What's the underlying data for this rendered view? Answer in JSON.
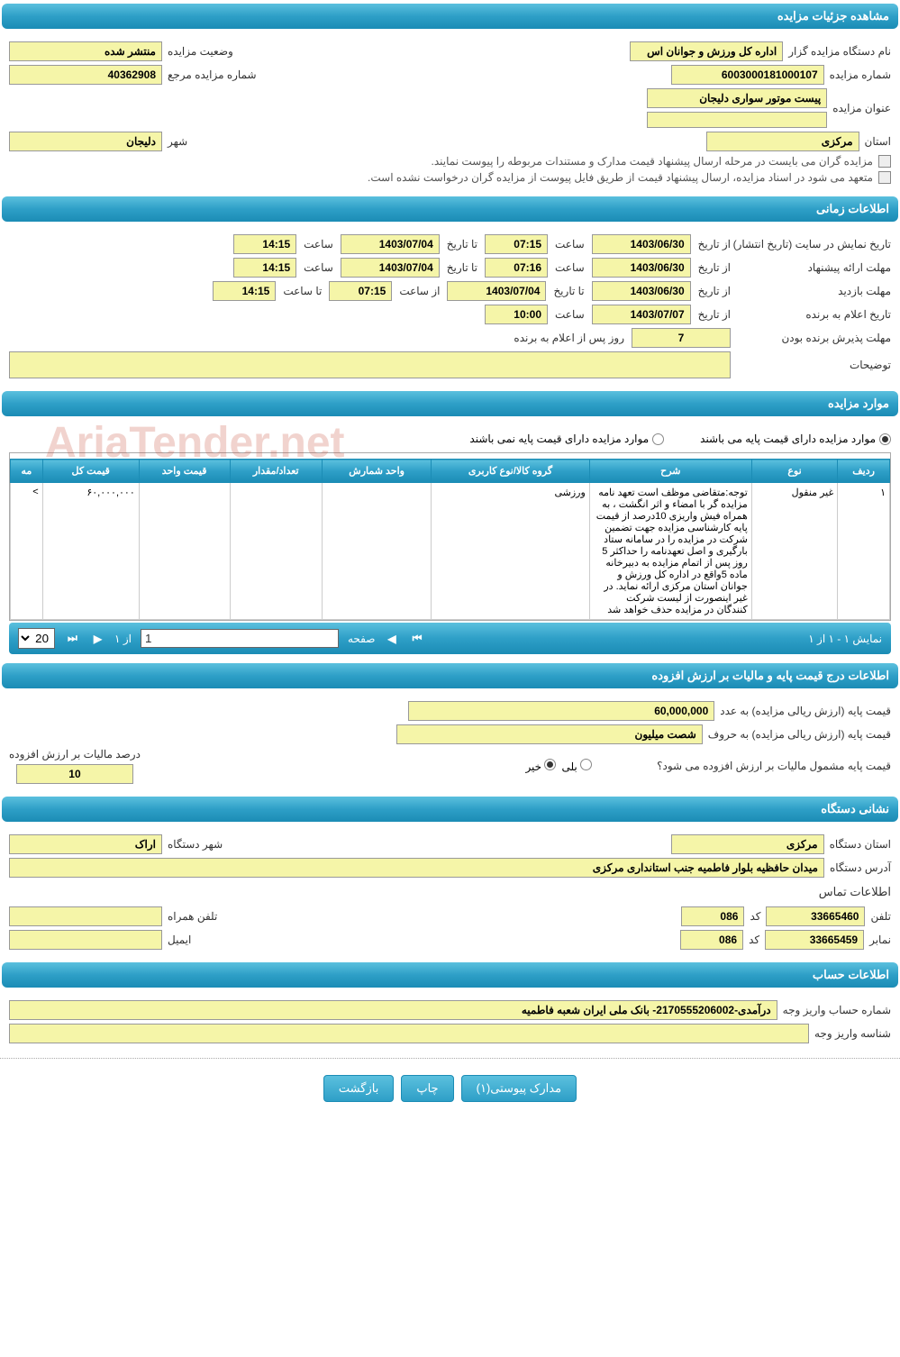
{
  "sections": {
    "details": "مشاهده جزئیات مزایده",
    "timing": "اطلاعات زمانی",
    "items": "موارد مزایده",
    "price_vat": "اطلاعات درج قیمت پایه و مالیات بر ارزش افزوده",
    "org_address": "نشانی دستگاه",
    "account": "اطلاعات حساب"
  },
  "details": {
    "org_label": "نام دستگاه مزایده گزار",
    "org_value": "اداره کل ورزش و جوانان اس",
    "status_label": "وضعیت مزایده",
    "status_value": "منتشر شده",
    "number_label": "شماره مزایده",
    "number_value": "6003000181000107",
    "ref_label": "شماره مزایده مرجع",
    "ref_value": "40362908",
    "title_label": "عنوان مزایده",
    "title_value": "پیست موتور سواری دلیجان",
    "province_label": "استان",
    "province_value": "مرکزی",
    "city_label": "شهر",
    "city_value": "دلیجان",
    "check1": "مزایده گران می بایست در مرحله ارسال پیشنهاد قیمت مدارک و مستندات مربوطه را پیوست نمایند.",
    "check2": "متعهد می شود در اسناد مزایده، ارسال پیشنهاد قیمت از طریق فایل پیوست از مزایده گران درخواست نشده است."
  },
  "timing": {
    "publish_label": "تاریخ نمایش در سایت (تاریخ انتشار)",
    "from_date_label": "از تاریخ",
    "to_date_label": "تا تاریخ",
    "hour_label": "ساعت",
    "from_hour_label": "از ساعت",
    "to_hour_label": "تا ساعت",
    "publish_from_date": "1403/06/30",
    "publish_from_time": "07:15",
    "publish_to_date": "1403/07/04",
    "publish_to_time": "14:15",
    "offer_label": "مهلت ارائه پیشنهاد",
    "offer_from_date": "1403/06/30",
    "offer_from_time": "07:16",
    "offer_to_date": "1403/07/04",
    "offer_to_time": "14:15",
    "visit_label": "مهلت بازدید",
    "visit_from_date": "1403/06/30",
    "visit_to_date": "1403/07/04",
    "visit_from_time": "07:15",
    "visit_to_time": "14:15",
    "winner_label": "تاریخ اعلام به برنده",
    "winner_date": "1403/07/07",
    "winner_time": "10:00",
    "accept_label": "مهلت پذیرش برنده بودن",
    "accept_days": "7",
    "accept_after": "روز پس از اعلام به برنده",
    "notes_label": "توضیحات",
    "notes_value": ""
  },
  "items": {
    "radio_has_base": "موارد مزایده دارای قیمت پایه می باشند",
    "radio_no_base": "موارد مزایده دارای قیمت پایه نمی باشند",
    "columns": [
      "ردیف",
      "نوع",
      "شرح",
      "گروه کالا/نوع کاربری",
      "واحد شمارش",
      "تعداد/مقدار",
      "قیمت واحد",
      "قیمت کل",
      "مه"
    ],
    "rows": [
      {
        "index": "۱",
        "type": "غیر منقول",
        "desc": "توجه:متقاضی موظف است تعهد نامه مزایده گر با امضاء و اثر انگشت ، به همراه فیش واریزی 10درصد از قیمت پایه کارشناسی مزایده جهت تضمین شرکت در مزایده را در سامانه ستاد بارگیری و اصل تعهدنامه را  حداکثر 5 روز پس از اتمام مزایده  به دبیرخانه ماده 5واقع در اداره کل ورزش و جوانان استان مرکزی ارائه نماید. در غیر اینصورت از لیست شرکت کنندگان در مزایده حذف خواهد شد",
        "group": "ورزشی",
        "unit": "",
        "qty": "",
        "unit_price": "",
        "total_price": "۶۰,۰۰۰,۰۰۰",
        "extra": ">"
      }
    ],
    "pager": {
      "summary": "نمایش ۱ - ۱ از ۱",
      "page_label": "صفحه",
      "page_value": "1",
      "of_label": "از ۱",
      "page_size": "20"
    }
  },
  "price_vat": {
    "base_num_label": "قیمت پایه (ارزش ریالی مزایده) به عدد",
    "base_num_value": "60,000,000",
    "base_text_label": "قیمت پایه (ارزش ریالی مزایده) به حروف",
    "base_text_value": "شصت میلیون",
    "vat_q_label": "قیمت پایه مشمول مالیات بر ارزش افزوده می شود؟",
    "yes": "بلی",
    "no": "خیر",
    "vat_pct_label": "درصد مالیات بر ارزش افزوده",
    "vat_pct_value": "10"
  },
  "org": {
    "province_label": "استان دستگاه",
    "province_value": "مرکزی",
    "city_label": "شهر دستگاه",
    "city_value": "اراک",
    "address_label": "آدرس دستگاه",
    "address_value": "میدان حافظیه بلوار فاطمیه جنب استانداری مرکزی",
    "contact_title": "اطلاعات تماس",
    "phone_label": "تلفن",
    "phone_value": "33665460",
    "code_label": "کد",
    "phone_code": "086",
    "mobile_label": "تلفن همراه",
    "mobile_value": "",
    "fax_label": "نمابر",
    "fax_value": "33665459",
    "fax_code": "086",
    "email_label": "ایمیل",
    "email_value": ""
  },
  "account": {
    "acct_label": "شماره حساب واریز وجه",
    "acct_value": "درآمدی-2170555206002- بانک ملی ایران شعبه فاطمیه",
    "id_label": "شناسه واریز وجه",
    "id_value": ""
  },
  "buttons": {
    "attachments": "مدارک پیوستی(۱)",
    "print": "چاپ",
    "back": "بازگشت"
  },
  "watermark": "AriaTender.net",
  "colors": {
    "header_bg_top": "#5bc0de",
    "header_bg_bottom": "#1b8cb5",
    "field_bg": "#f5f5a8",
    "text": "#333333"
  }
}
